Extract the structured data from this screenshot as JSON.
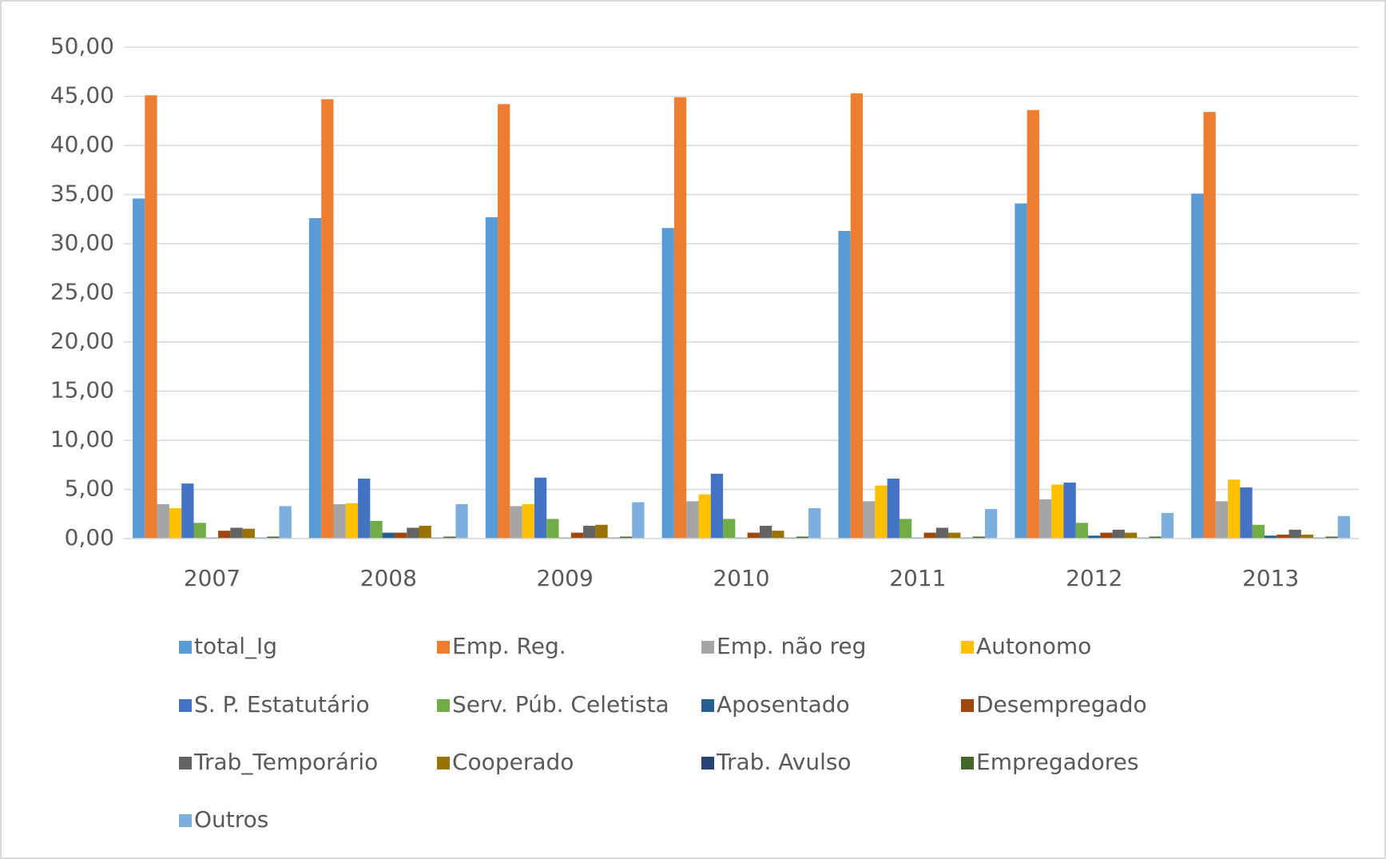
{
  "chart_data": {
    "type": "bar",
    "categories": [
      "2007",
      "2008",
      "2009",
      "2010",
      "2011",
      "2012",
      "2013"
    ],
    "series": [
      {
        "name": "total_Ig",
        "color": "#5b9bd5",
        "values": [
          34.6,
          32.6,
          32.7,
          31.6,
          31.3,
          34.1,
          35.1
        ]
      },
      {
        "name": "Emp. Reg.",
        "color": "#ed7d31",
        "values": [
          45.1,
          44.7,
          44.2,
          44.9,
          45.3,
          43.6,
          43.4
        ]
      },
      {
        "name": "Emp. não reg",
        "color": "#a5a5a5",
        "values": [
          3.5,
          3.5,
          3.3,
          3.8,
          3.8,
          4.0,
          3.8
        ]
      },
      {
        "name": "Autonomo",
        "color": "#ffc000",
        "values": [
          3.1,
          3.6,
          3.5,
          4.5,
          5.4,
          5.5,
          6.0
        ]
      },
      {
        "name": "S. P. Estatutário",
        "color": "#4472c4",
        "values": [
          5.6,
          6.1,
          6.2,
          6.6,
          6.1,
          5.7,
          5.2
        ]
      },
      {
        "name": "Serv. Púb. Celetista",
        "color": "#70ad47",
        "values": [
          1.6,
          1.8,
          2.0,
          2.0,
          2.0,
          1.6,
          1.4
        ]
      },
      {
        "name": "Aposentado",
        "color": "#255e91",
        "values": [
          0.1,
          0.6,
          0.1,
          0.1,
          0.1,
          0.3,
          0.3
        ]
      },
      {
        "name": "Desempregado",
        "color": "#9e480e",
        "values": [
          0.8,
          0.6,
          0.6,
          0.6,
          0.6,
          0.6,
          0.4
        ]
      },
      {
        "name": "Trab_Temporário",
        "color": "#636363",
        "values": [
          1.1,
          1.1,
          1.3,
          1.3,
          1.1,
          0.9,
          0.9
        ]
      },
      {
        "name": "Cooperado",
        "color": "#997300",
        "values": [
          1.0,
          1.3,
          1.4,
          0.8,
          0.6,
          0.6,
          0.4
        ]
      },
      {
        "name": "Trab. Avulso",
        "color": "#264478",
        "values": [
          0.1,
          0.1,
          0.1,
          0.1,
          0.1,
          0.1,
          0.1
        ]
      },
      {
        "name": "Empregadores",
        "color": "#43682b",
        "values": [
          0.2,
          0.2,
          0.2,
          0.2,
          0.2,
          0.2,
          0.2
        ]
      },
      {
        "name": "Outros",
        "color": "#7cafdd",
        "values": [
          3.3,
          3.5,
          3.7,
          3.1,
          3.0,
          2.6,
          2.3
        ]
      }
    ],
    "ylim": [
      0,
      50
    ],
    "yticks": [
      {
        "value": 0,
        "label": "0,00"
      },
      {
        "value": 5,
        "label": "5,00"
      },
      {
        "value": 10,
        "label": "10,00"
      },
      {
        "value": 15,
        "label": "15,00"
      },
      {
        "value": 20,
        "label": "20,00"
      },
      {
        "value": 25,
        "label": "25,00"
      },
      {
        "value": 30,
        "label": "30,00"
      },
      {
        "value": 35,
        "label": "35,00"
      },
      {
        "value": 40,
        "label": "40,00"
      },
      {
        "value": 45,
        "label": "45,00"
      },
      {
        "value": 50,
        "label": "50,00"
      }
    ],
    "grid": true,
    "legend": "bottom"
  }
}
